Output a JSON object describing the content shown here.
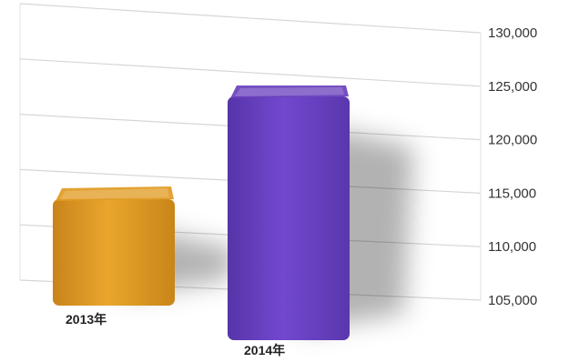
{
  "chart_data": {
    "type": "bar",
    "style": "3d",
    "categories": [
      "2013年",
      "2014年"
    ],
    "values": [
      117000,
      126000
    ],
    "colors": [
      "#e19a22",
      "#6a40bd"
    ],
    "ylim": [
      105000,
      130000
    ],
    "yticks": [
      "130,000",
      "125,000",
      "120,000",
      "115,000",
      "110,000",
      "105,000"
    ],
    "ytick_values": [
      130000,
      125000,
      120000,
      115000,
      110000,
      105000
    ],
    "axis_position": "right",
    "grid": true,
    "legend": "none"
  }
}
